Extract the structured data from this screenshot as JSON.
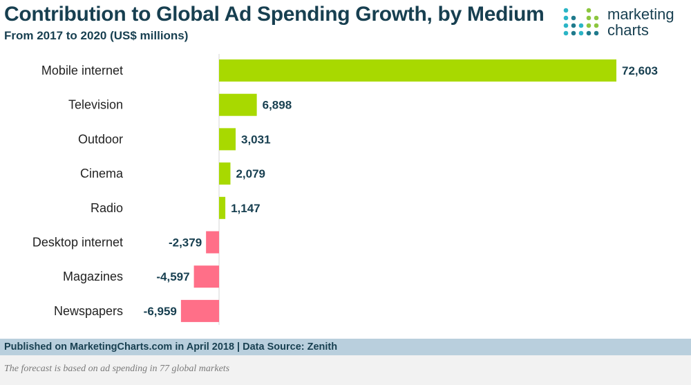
{
  "header": {
    "title": "Contribution to Global Ad Spending Growth, by Medium",
    "subtitle": "From 2017 to 2020 (US$ millions)"
  },
  "logo": {
    "line1": "marketing",
    "line2": "charts",
    "dot_colors": [
      "#2bb5c6",
      "#8cc63f",
      "#1f7a8c"
    ]
  },
  "chart_data": {
    "type": "bar",
    "orientation": "horizontal",
    "title": "Contribution to Global Ad Spending Growth, by Medium",
    "subtitle": "From 2017 to 2020 (US$ millions)",
    "categories": [
      "Mobile internet",
      "Television",
      "Outdoor",
      "Cinema",
      "Radio",
      "Desktop internet",
      "Magazines",
      "Newspapers"
    ],
    "values": [
      72603,
      6898,
      3031,
      2079,
      1147,
      -2379,
      -4597,
      -6959
    ],
    "value_labels": [
      "72,603",
      "6,898",
      "3,031",
      "2,079",
      "1,147",
      "-2,379",
      "-4,597",
      "-6,959"
    ],
    "xlim": [
      -7500,
      75000
    ],
    "positive_color": "#a8d900",
    "negative_color": "#ff6f88",
    "grid": false
  },
  "footer": {
    "published": "Published on MarketingCharts.com in April 2018 | Data Source: Zenith",
    "note": "The forecast is based on ad spending in 77 global markets"
  }
}
